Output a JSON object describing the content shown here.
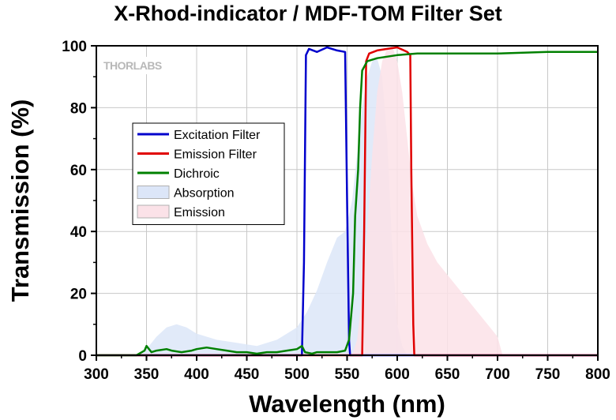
{
  "chart_data": {
    "type": "line",
    "title": "X-Rhod-indicator / MDF-TOM Filter Set",
    "xlabel": "Wavelength (nm)",
    "ylabel": "Transmission (%)",
    "xlim": [
      300,
      800
    ],
    "ylim": [
      0,
      100
    ],
    "xticks": [
      300,
      350,
      400,
      450,
      500,
      550,
      600,
      650,
      700,
      750,
      800
    ],
    "yticks": [
      0,
      20,
      40,
      60,
      80,
      100
    ],
    "grid": true,
    "legend_position": "upper-left",
    "logo": "THORLABS",
    "series": [
      {
        "name": "Excitation Filter",
        "style": "line",
        "color": "#0000cc",
        "points": [
          [
            300,
            0
          ],
          [
            505,
            0
          ],
          [
            507,
            30
          ],
          [
            509,
            97
          ],
          [
            512,
            99
          ],
          [
            520,
            98
          ],
          [
            530,
            99.5
          ],
          [
            540,
            98.5
          ],
          [
            548,
            98
          ],
          [
            550,
            50
          ],
          [
            552,
            5
          ],
          [
            553,
            0
          ],
          [
            800,
            0
          ]
        ]
      },
      {
        "name": "Emission Filter",
        "style": "line",
        "color": "#e00000",
        "points": [
          [
            300,
            0
          ],
          [
            565,
            0
          ],
          [
            567,
            40
          ],
          [
            569,
            95
          ],
          [
            572,
            97.5
          ],
          [
            580,
            98.5
          ],
          [
            590,
            99
          ],
          [
            600,
            99.5
          ],
          [
            610,
            98
          ],
          [
            613,
            97
          ],
          [
            614,
            60
          ],
          [
            616,
            10
          ],
          [
            617,
            0
          ],
          [
            800,
            0
          ]
        ]
      },
      {
        "name": "Dichroic",
        "style": "line",
        "color": "#008000",
        "points": [
          [
            300,
            0
          ],
          [
            340,
            0
          ],
          [
            348,
            1.5
          ],
          [
            350,
            3
          ],
          [
            355,
            1
          ],
          [
            360,
            1.5
          ],
          [
            370,
            2
          ],
          [
            375,
            1.5
          ],
          [
            385,
            1
          ],
          [
            395,
            1.5
          ],
          [
            400,
            2
          ],
          [
            410,
            2.5
          ],
          [
            420,
            2
          ],
          [
            430,
            1.5
          ],
          [
            440,
            1
          ],
          [
            450,
            1
          ],
          [
            460,
            0.5
          ],
          [
            470,
            1
          ],
          [
            480,
            1
          ],
          [
            490,
            1.5
          ],
          [
            500,
            2
          ],
          [
            505,
            3
          ],
          [
            508,
            1
          ],
          [
            515,
            0.5
          ],
          [
            520,
            1
          ],
          [
            530,
            1
          ],
          [
            540,
            1
          ],
          [
            548,
            1.5
          ],
          [
            552,
            5
          ],
          [
            556,
            20
          ],
          [
            558,
            45
          ],
          [
            561,
            60
          ],
          [
            563,
            80
          ],
          [
            565,
            92
          ],
          [
            570,
            95
          ],
          [
            580,
            96
          ],
          [
            600,
            97
          ],
          [
            620,
            97.5
          ],
          [
            650,
            97.5
          ],
          [
            700,
            97.5
          ],
          [
            750,
            98
          ],
          [
            790,
            98
          ],
          [
            800,
            98
          ]
        ]
      },
      {
        "name": "Absorption",
        "style": "area",
        "color": "#dce6f8",
        "points": [
          [
            340,
            0
          ],
          [
            350,
            2
          ],
          [
            360,
            6
          ],
          [
            370,
            9
          ],
          [
            380,
            10
          ],
          [
            390,
            9
          ],
          [
            400,
            7
          ],
          [
            420,
            5
          ],
          [
            440,
            4
          ],
          [
            460,
            3
          ],
          [
            480,
            5
          ],
          [
            500,
            9
          ],
          [
            510,
            14
          ],
          [
            520,
            21
          ],
          [
            530,
            30
          ],
          [
            540,
            38
          ],
          [
            548,
            40
          ],
          [
            555,
            50
          ],
          [
            560,
            65
          ],
          [
            565,
            80
          ],
          [
            570,
            90
          ],
          [
            575,
            95
          ],
          [
            580,
            96
          ],
          [
            585,
            90
          ],
          [
            590,
            70
          ],
          [
            595,
            35
          ],
          [
            600,
            10
          ],
          [
            605,
            3
          ],
          [
            610,
            0
          ]
        ]
      },
      {
        "name": "Emission",
        "style": "area",
        "color": "#fbe2e8",
        "points": [
          [
            555,
            0
          ],
          [
            560,
            5
          ],
          [
            565,
            20
          ],
          [
            570,
            40
          ],
          [
            575,
            65
          ],
          [
            580,
            85
          ],
          [
            585,
            95
          ],
          [
            590,
            99
          ],
          [
            595,
            100
          ],
          [
            600,
            95
          ],
          [
            605,
            85
          ],
          [
            610,
            70
          ],
          [
            615,
            55
          ],
          [
            620,
            45
          ],
          [
            630,
            36
          ],
          [
            640,
            30
          ],
          [
            650,
            26
          ],
          [
            660,
            22
          ],
          [
            670,
            18
          ],
          [
            680,
            14
          ],
          [
            690,
            10
          ],
          [
            700,
            6
          ],
          [
            705,
            0
          ]
        ]
      }
    ]
  }
}
